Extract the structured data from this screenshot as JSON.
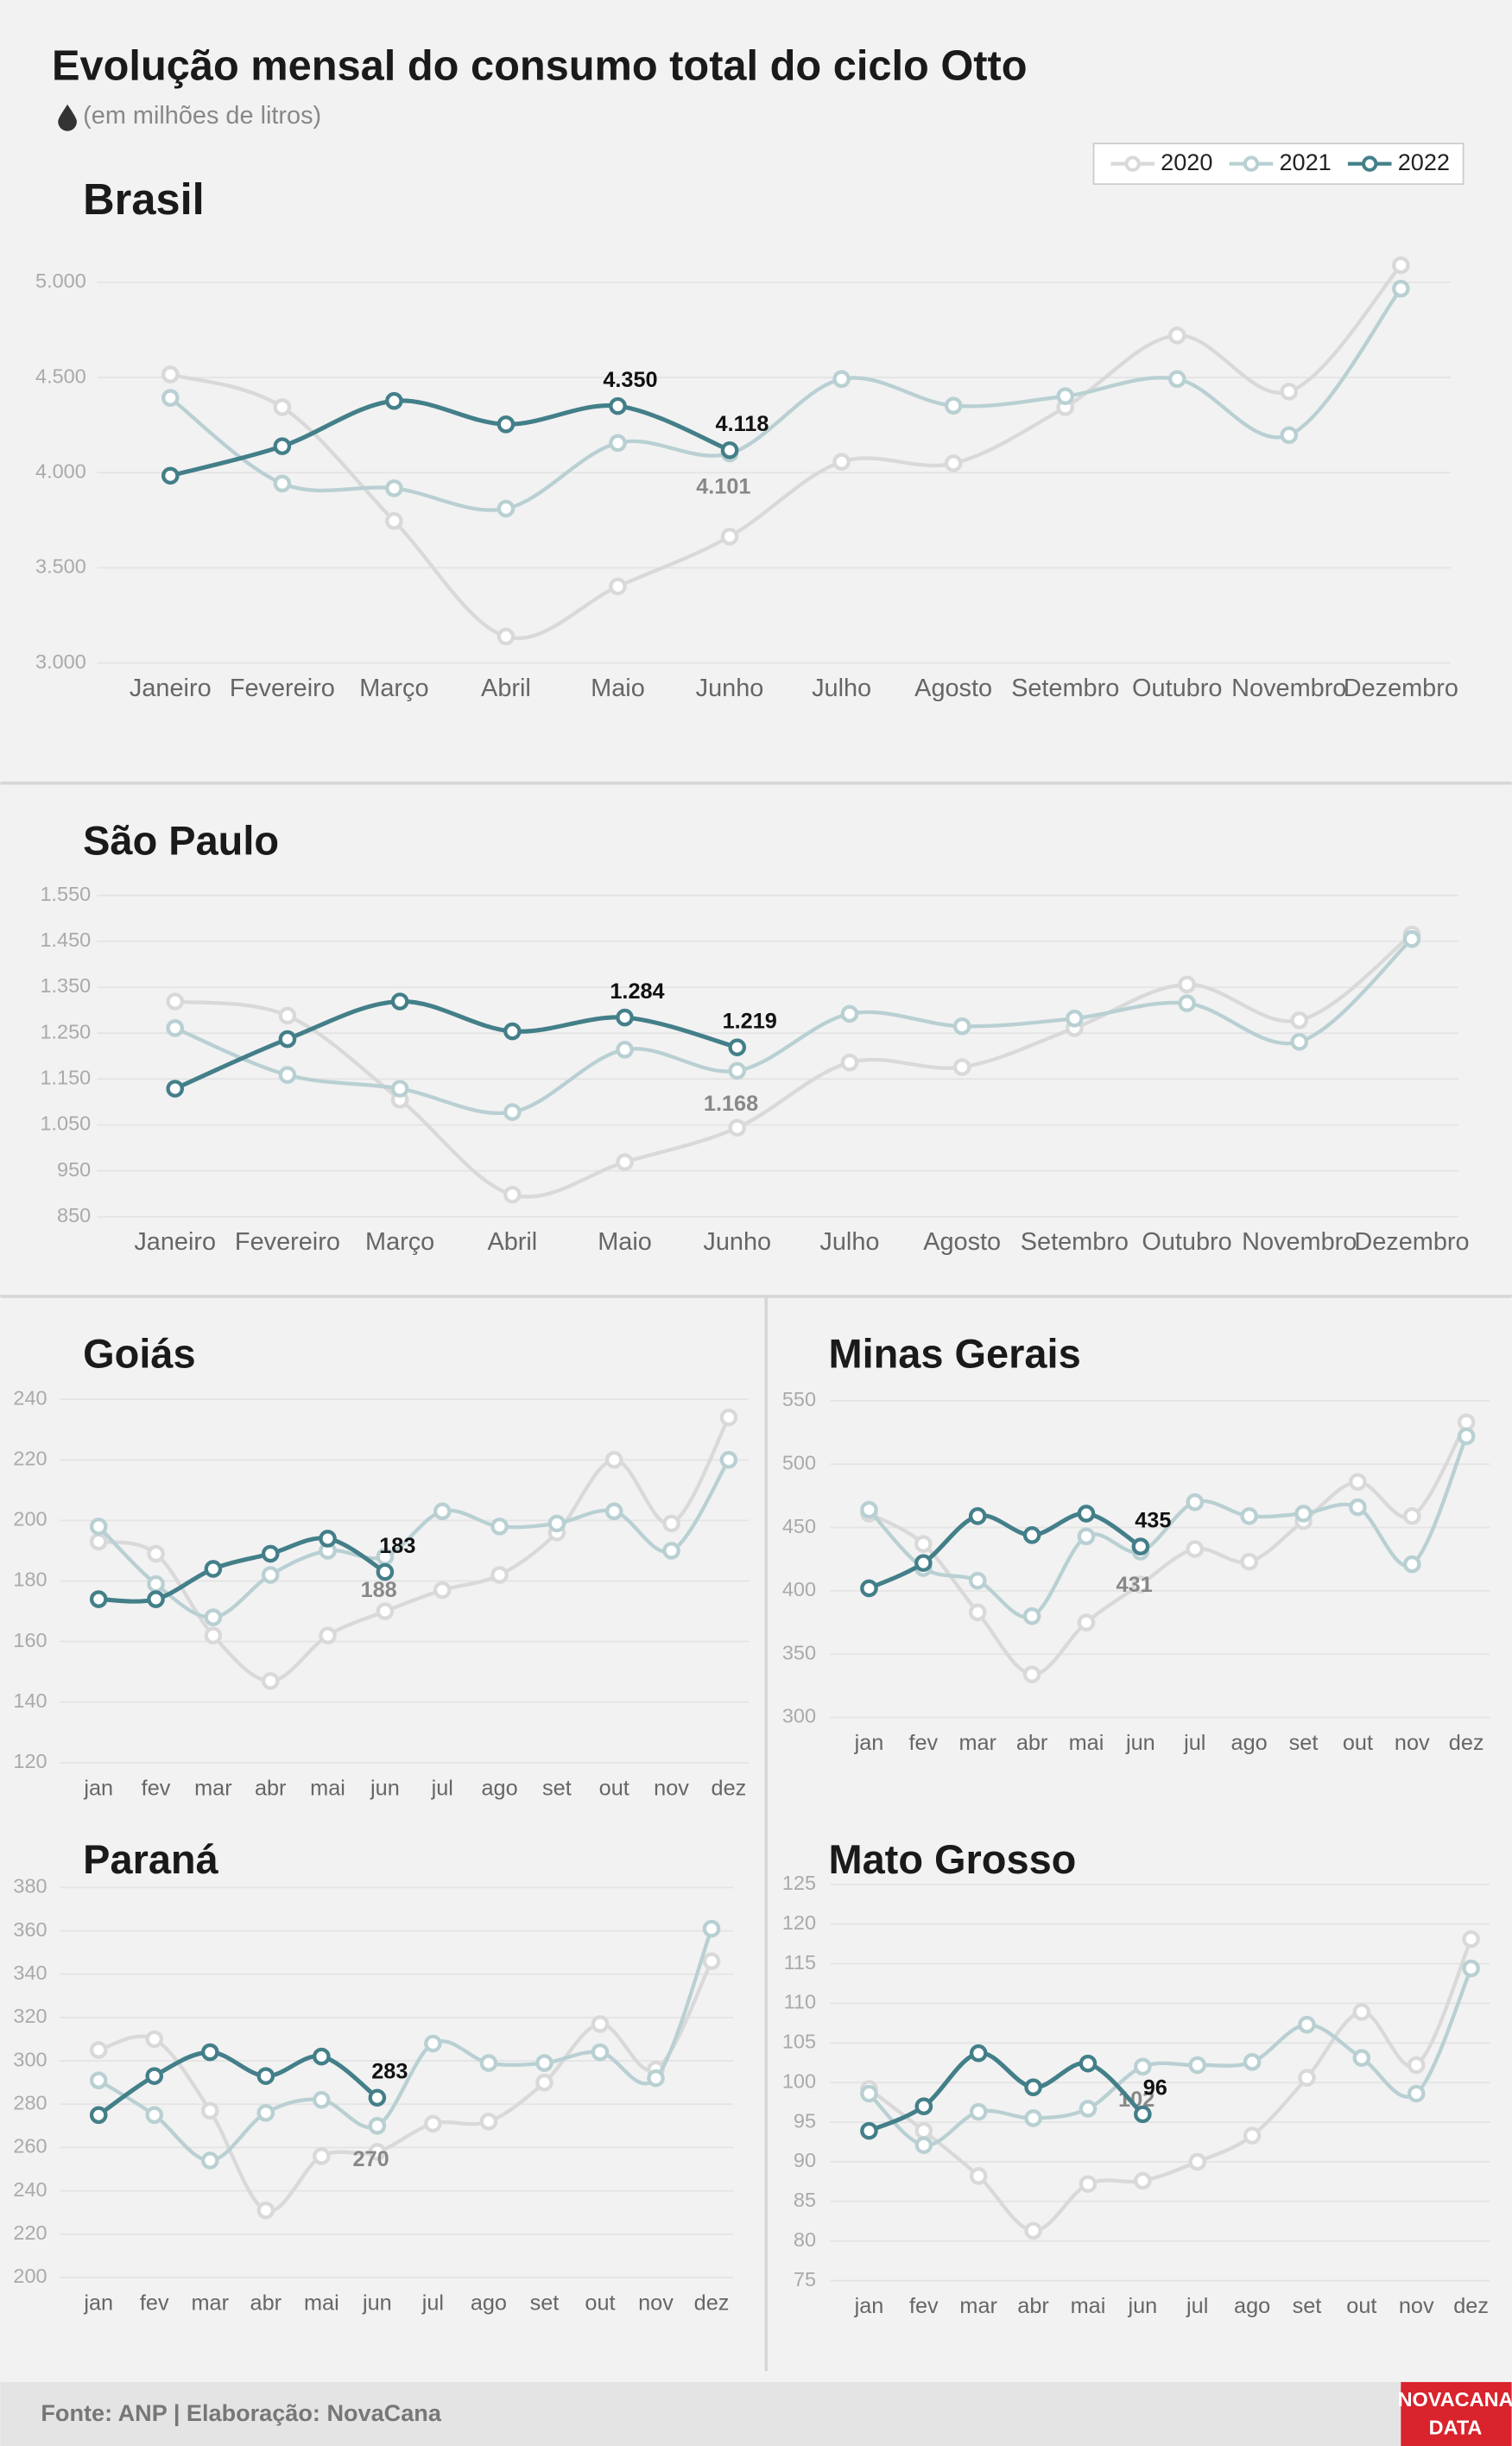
{
  "title": "Evolução mensal do consumo total do ciclo Otto",
  "subtitle": "(em milhões de litros)",
  "source": "Fonte: ANP | Elaboração: NovaCana",
  "logo": [
    "NOVACANA",
    "DATA"
  ],
  "chart_data": [
    {
      "type": "line",
      "title": "Brasil",
      "legend": "upper right",
      "categories": [
        "Janeiro",
        "Fevereiro",
        "Março",
        "Abril",
        "Maio",
        "Junho",
        "Julho",
        "Agosto",
        "Setembro",
        "Outubro",
        "Novembro",
        "Dezembro"
      ],
      "ylim": [
        3000,
        5000
      ],
      "yticks": [
        {
          "value": 3000,
          "label": "3.000"
        },
        {
          "value": 3500,
          "label": "3.500"
        },
        {
          "value": 4000,
          "label": "4.000"
        },
        {
          "value": 4500,
          "label": "4.500"
        },
        {
          "value": 5000,
          "label": "5.000"
        }
      ],
      "grid": true,
      "series": [
        {
          "name": "2020",
          "color": "#d9d9d9",
          "values": [
            4516,
            4344,
            3746,
            3139,
            3402,
            3664,
            4057,
            4049,
            4344,
            4721,
            4426,
            5090
          ]
        },
        {
          "name": "2021",
          "color": "#b9d0d3",
          "values": [
            4393,
            3943,
            3918,
            3811,
            4156,
            4101,
            4492,
            4352,
            4402,
            4492,
            4197,
            4967
          ],
          "value_labels": [
            null,
            null,
            null,
            null,
            null,
            "4.101",
            null,
            null,
            null,
            null,
            null,
            null
          ]
        },
        {
          "name": "2022",
          "color": "#437f89",
          "values": [
            3984,
            4139,
            4377,
            4254,
            4350,
            4118,
            null,
            null,
            null,
            null,
            null,
            null
          ],
          "value_labels": [
            null,
            null,
            null,
            null,
            "4.350",
            "4.118",
            null,
            null,
            null,
            null,
            null,
            null
          ]
        }
      ]
    },
    {
      "type": "line",
      "title": "São Paulo",
      "categories": [
        "Janeiro",
        "Fevereiro",
        "Março",
        "Abril",
        "Maio",
        "Junho",
        "Julho",
        "Agosto",
        "Setembro",
        "Outubro",
        "Novembro",
        "Dezembro"
      ],
      "ylim": [
        850,
        1550
      ],
      "yticks": [
        850,
        950,
        {
          "value": 1050,
          "label": "1.050"
        },
        {
          "value": 1150,
          "label": "1.150"
        },
        {
          "value": 1250,
          "label": "1.250"
        },
        {
          "value": 1350,
          "label": "1.350"
        },
        {
          "value": 1450,
          "label": "1.450"
        },
        {
          "value": 1550,
          "label": "1.550"
        }
      ],
      "grid": true,
      "series": [
        {
          "name": "2020",
          "color": "#d9d9d9",
          "values": [
            1319,
            1288,
            1105,
            898,
            969,
            1044,
            1186,
            1176,
            1261,
            1356,
            1278,
            1465
          ]
        },
        {
          "name": "2021",
          "color": "#b9d0d3",
          "values": [
            1261,
            1159,
            1129,
            1078,
            1214,
            1168,
            1292,
            1265,
            1282,
            1315,
            1231,
            1455
          ],
          "value_labels": [
            null,
            null,
            null,
            null,
            null,
            "1.168",
            null,
            null,
            null,
            null,
            null,
            null
          ]
        },
        {
          "name": "2022",
          "color": "#437f89",
          "values": [
            1129,
            1237,
            1319,
            1254,
            1284,
            1219,
            null,
            null,
            null,
            null,
            null,
            null
          ],
          "value_labels": [
            null,
            null,
            null,
            null,
            "1.284",
            "1.219",
            null,
            null,
            null,
            null,
            null,
            null
          ]
        }
      ]
    },
    {
      "type": "line",
      "title": "Goiás",
      "categories": [
        "jan",
        "fev",
        "mar",
        "abr",
        "mai",
        "jun",
        "jul",
        "ago",
        "set",
        "out",
        "nov",
        "dez"
      ],
      "ylim": [
        120,
        240
      ],
      "yticks": [
        120,
        140,
        160,
        180,
        200,
        220,
        240
      ],
      "grid": true,
      "series": [
        {
          "name": "2020",
          "color": "#d9d9d9",
          "values": [
            193,
            189,
            162,
            147,
            162,
            170,
            177,
            182,
            196,
            220,
            199,
            234
          ]
        },
        {
          "name": "2021",
          "color": "#b9d0d3",
          "values": [
            198,
            179,
            168,
            182,
            190,
            188,
            203,
            198,
            199,
            203,
            190,
            220
          ],
          "value_labels": [
            null,
            null,
            null,
            null,
            null,
            "188",
            null,
            null,
            null,
            null,
            null,
            null
          ]
        },
        {
          "name": "2022",
          "color": "#437f89",
          "values": [
            174,
            174,
            184,
            189,
            194,
            183,
            null,
            null,
            null,
            null,
            null,
            null
          ],
          "value_labels": [
            null,
            null,
            null,
            null,
            null,
            "183",
            null,
            null,
            null,
            null,
            null,
            null
          ]
        }
      ]
    },
    {
      "type": "line",
      "title": "Minas Gerais",
      "categories": [
        "jan",
        "fev",
        "mar",
        "abr",
        "mai",
        "jun",
        "jul",
        "ago",
        "set",
        "out",
        "nov",
        "dez"
      ],
      "ylim": [
        300,
        550
      ],
      "yticks": [
        300,
        350,
        400,
        450,
        500,
        550
      ],
      "grid": true,
      "series": [
        {
          "name": "2020",
          "color": "#d9d9d9",
          "values": [
            461,
            437,
            383,
            334,
            375,
            405,
            433,
            423,
            455,
            486,
            459,
            533
          ]
        },
        {
          "name": "2021",
          "color": "#b9d0d3",
          "values": [
            464,
            418,
            408,
            380,
            443,
            431,
            470,
            459,
            461,
            466,
            421,
            522
          ],
          "value_labels": [
            null,
            null,
            null,
            null,
            null,
            "431",
            null,
            null,
            null,
            null,
            null,
            null
          ]
        },
        {
          "name": "2022",
          "color": "#437f89",
          "values": [
            402,
            422,
            459,
            444,
            461,
            435,
            null,
            null,
            null,
            null,
            null,
            null
          ],
          "value_labels": [
            null,
            null,
            null,
            null,
            null,
            "435",
            null,
            null,
            null,
            null,
            null,
            null
          ]
        }
      ]
    },
    {
      "type": "line",
      "title": "Paraná",
      "categories": [
        "jan",
        "fev",
        "mar",
        "abr",
        "mai",
        "jun",
        "jul",
        "ago",
        "set",
        "out",
        "nov",
        "dez"
      ],
      "ylim": [
        200,
        380
      ],
      "yticks": [
        200,
        220,
        240,
        260,
        280,
        300,
        320,
        340,
        360,
        380
      ],
      "grid": true,
      "series": [
        {
          "name": "2020",
          "color": "#d9d9d9",
          "values": [
            305,
            310,
            277,
            231,
            256,
            258,
            271,
            272,
            290,
            317,
            296,
            346
          ]
        },
        {
          "name": "2021",
          "color": "#b9d0d3",
          "values": [
            291,
            275,
            254,
            276,
            282,
            270,
            308,
            299,
            299,
            304,
            292,
            361
          ],
          "value_labels": [
            null,
            null,
            null,
            null,
            null,
            "270",
            null,
            null,
            null,
            null,
            null,
            null
          ]
        },
        {
          "name": "2022",
          "color": "#437f89",
          "values": [
            275,
            293,
            304,
            293,
            302,
            283,
            null,
            null,
            null,
            null,
            null,
            null
          ],
          "value_labels": [
            null,
            null,
            null,
            null,
            null,
            "283",
            null,
            null,
            null,
            null,
            null,
            null
          ]
        }
      ]
    },
    {
      "type": "line",
      "title": "Mato Grosso",
      "categories": [
        "jan",
        "fev",
        "mar",
        "abr",
        "mai",
        "jun",
        "jul",
        "ago",
        "set",
        "out",
        "nov",
        "dez"
      ],
      "ylim": [
        75,
        125
      ],
      "yticks": [
        75,
        80,
        85,
        90,
        95,
        100,
        105,
        110,
        115,
        120,
        125
      ],
      "grid": true,
      "series": [
        {
          "name": "2020",
          "color": "#d9d9d9",
          "values": [
            99.2,
            93.9,
            88.2,
            81.3,
            87.2,
            87.6,
            90.0,
            93.3,
            100.6,
            108.9,
            102.2,
            118.1
          ]
        },
        {
          "name": "2021",
          "color": "#b9d0d3",
          "values": [
            98.6,
            92.1,
            96.3,
            95.5,
            96.7,
            102,
            102.2,
            102.6,
            107.3,
            103.1,
            98.6,
            114.4
          ],
          "value_labels": [
            null,
            null,
            null,
            null,
            null,
            "102",
            null,
            null,
            null,
            null,
            null,
            null
          ]
        },
        {
          "name": "2022",
          "color": "#437f89",
          "values": [
            93.9,
            97.0,
            103.7,
            99.4,
            102.4,
            96,
            null,
            null,
            null,
            null,
            null,
            null
          ],
          "value_labels": [
            null,
            null,
            null,
            null,
            null,
            "96",
            null,
            null,
            null,
            null,
            null,
            null
          ]
        }
      ]
    }
  ]
}
